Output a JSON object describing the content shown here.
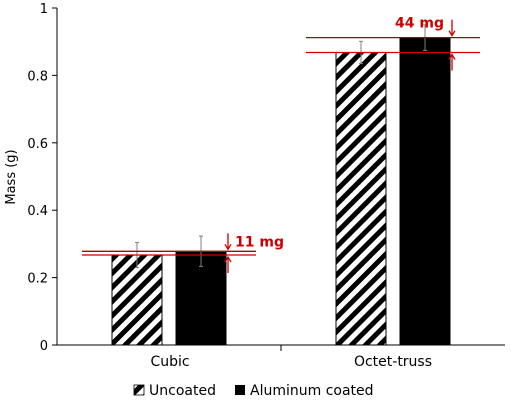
{
  "chart_data": {
    "type": "bar",
    "categories": [
      "Cubic",
      "Octet-truss"
    ],
    "series": [
      {
        "name": "Uncoated",
        "values": [
          0.267,
          0.868
        ],
        "errors": [
          0.037,
          0.033
        ],
        "fill": "hatch"
      },
      {
        "name": "Aluminum coated",
        "values": [
          0.278,
          0.912
        ],
        "errors": [
          0.045,
          0.038
        ],
        "fill": "#000000"
      }
    ],
    "xlabel": "",
    "ylabel": "Mass (g)",
    "ylim": [
      0,
      1
    ],
    "yticks": [
      "0",
      "0.2",
      "0.4",
      "0.6",
      "0.8",
      "1"
    ],
    "ytick_values": [
      0,
      0.2,
      0.4,
      0.6,
      0.8,
      1
    ],
    "grid": false,
    "legend_position": "bottom",
    "annotations": [
      {
        "text": "11 mg",
        "category": "Cubic",
        "lower": 0.267,
        "upper": 0.278,
        "color": "#cc0000"
      },
      {
        "text": "44 mg",
        "category": "Octet-truss",
        "lower": 0.868,
        "upper": 0.912,
        "color": "#cc0000"
      }
    ]
  }
}
